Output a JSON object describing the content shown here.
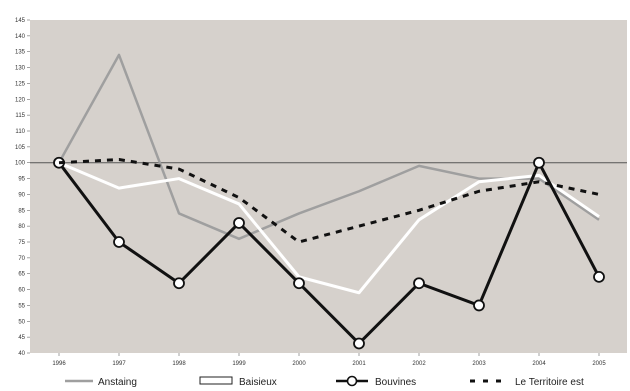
{
  "chart_data": {
    "type": "line",
    "title": "",
    "xlabel": "",
    "ylabel": "",
    "categories": [
      "1996",
      "1997",
      "1998",
      "1999",
      "2000",
      "2001",
      "2002",
      "2003",
      "2004",
      "2005"
    ],
    "ylim": [
      40,
      145
    ],
    "yticks": [
      40,
      45,
      50,
      55,
      60,
      65,
      70,
      75,
      80,
      85,
      90,
      95,
      100,
      105,
      110,
      115,
      120,
      125,
      130,
      135,
      140,
      145
    ],
    "reference_line": 100,
    "grid": false,
    "legend_position": "bottom",
    "plot_background": "#d6d1cc",
    "series": [
      {
        "name": "Anstaing",
        "style": "gray-line",
        "color": "#9f9f9f",
        "values": [
          100,
          134,
          84,
          76,
          84,
          91,
          99,
          95,
          95,
          82
        ]
      },
      {
        "name": "Baisieux",
        "style": "white-line",
        "color": "#ffffff",
        "values": [
          100,
          92,
          95,
          87,
          64,
          59,
          82,
          94,
          96,
          83
        ]
      },
      {
        "name": "Bouvines",
        "style": "black-line-markers",
        "color": "#111111",
        "values": [
          100,
          75,
          62,
          81,
          62,
          43,
          62,
          55,
          100,
          64
        ]
      },
      {
        "name": "Le Territoire est",
        "style": "dashed",
        "color": "#111111",
        "values": [
          100,
          101,
          98,
          89,
          75,
          80,
          85,
          91,
          94,
          90
        ]
      }
    ]
  }
}
